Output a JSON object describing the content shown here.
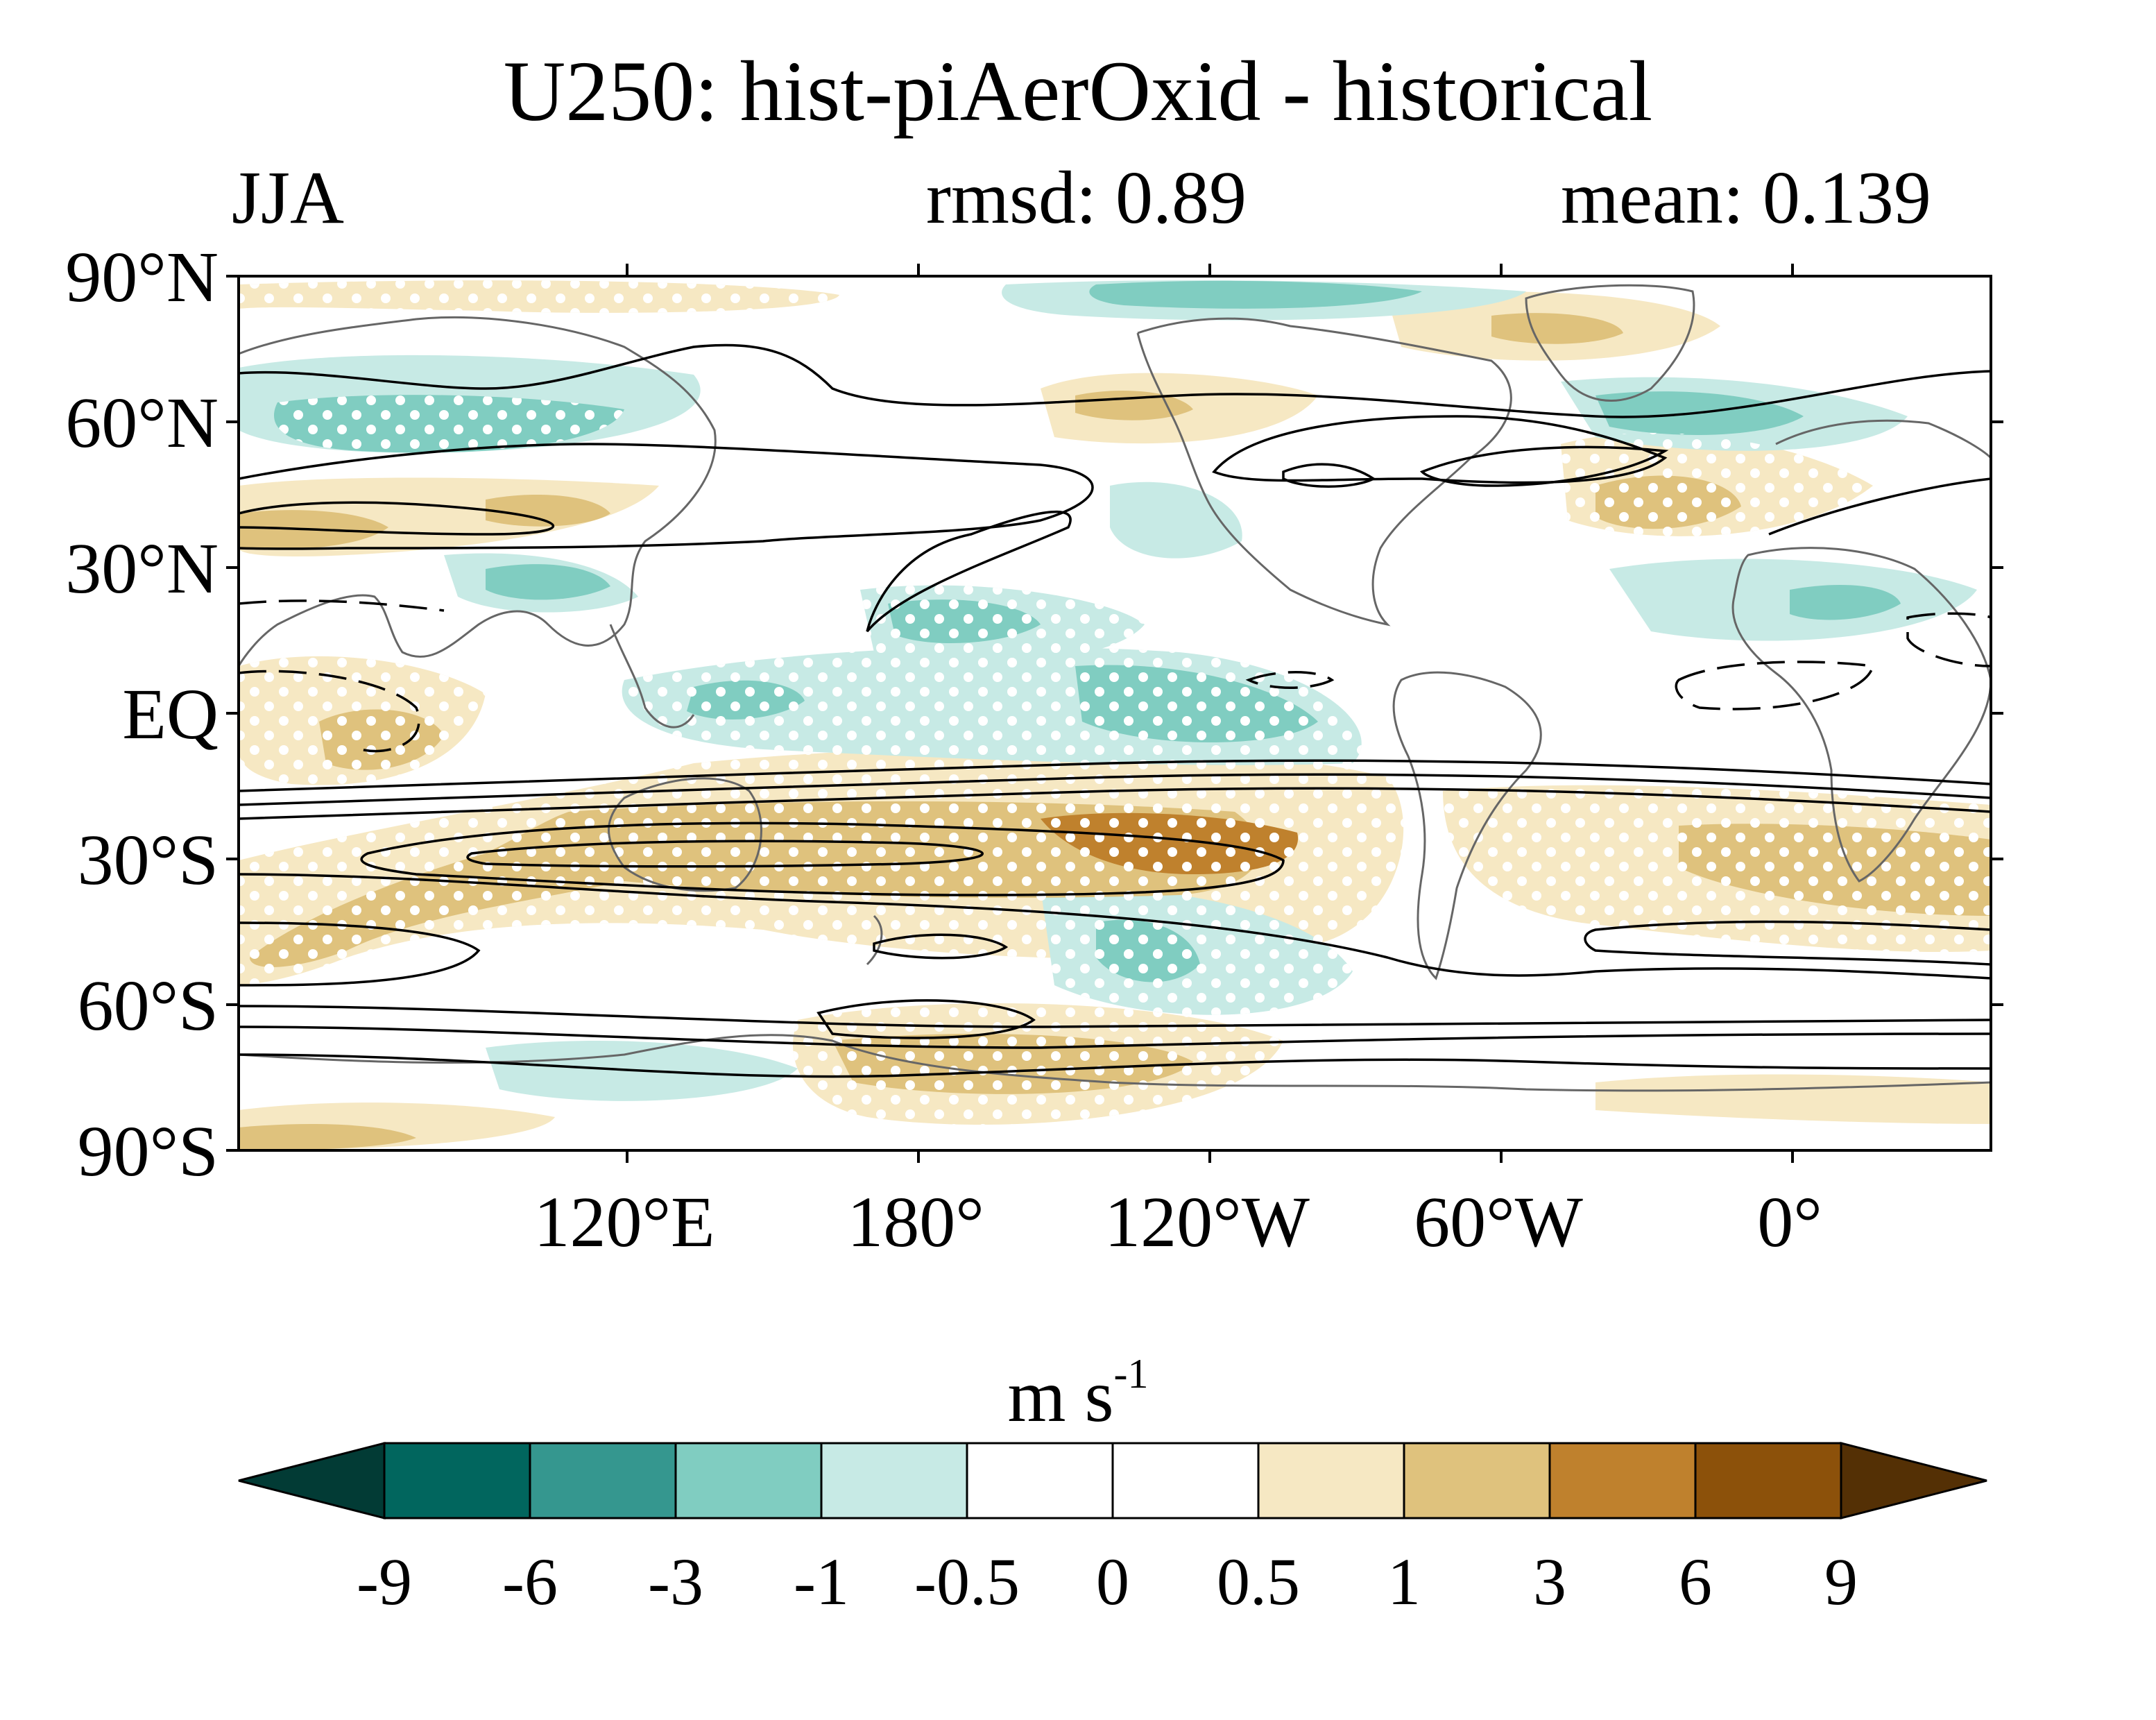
{
  "title": "U250: hist-piAerOxid - historical",
  "season": "JJA",
  "rmsd_label": "rmsd: 0.89",
  "mean_label": "mean: 0.139",
  "lat_labels": [
    "90°N",
    "60°N",
    "30°N",
    "EQ",
    "30°S",
    "60°S",
    "90°S"
  ],
  "lon_labels": [
    "120°E",
    "180°",
    "120°W",
    "60°W",
    "0°"
  ],
  "colorbar": {
    "unit": "m s",
    "unit_exponent": "-1",
    "labels": [
      "-9",
      "-6",
      "-3",
      "-1",
      "-0.5",
      "0",
      "0.5",
      "1",
      "3",
      "6",
      "9"
    ],
    "colors": [
      "#023b35",
      "#01665e",
      "#35978f",
      "#80cdc1",
      "#c7eae5",
      "#ffffff",
      "#ffffff",
      "#f6e8c3",
      "#dfc27d",
      "#bf812d",
      "#8c510a",
      "#543005"
    ]
  }
}
